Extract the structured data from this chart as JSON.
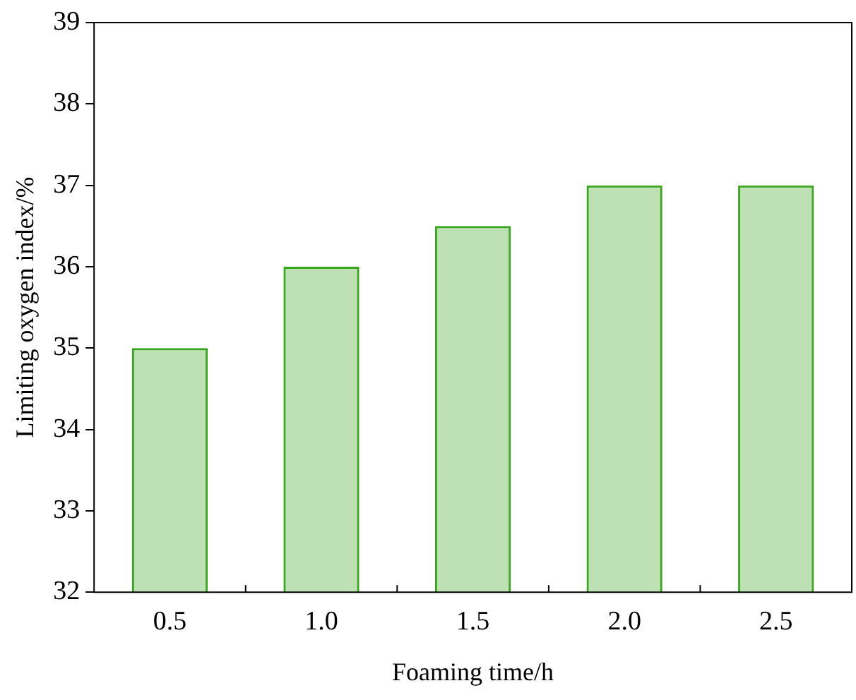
{
  "chart_data": {
    "type": "bar",
    "xlabel": "Foaming time/h",
    "ylabel": "Limiting oxygen index/%",
    "categories": [
      "0.5",
      "1.0",
      "1.5",
      "2.0",
      "2.5"
    ],
    "values": [
      35,
      36,
      36.5,
      37,
      37
    ],
    "color": "#3aa61e",
    "ylim": [
      32,
      39
    ],
    "yticks": [
      32,
      33,
      34,
      35,
      36,
      37,
      38,
      39
    ],
    "grid": false,
    "legend": false
  }
}
